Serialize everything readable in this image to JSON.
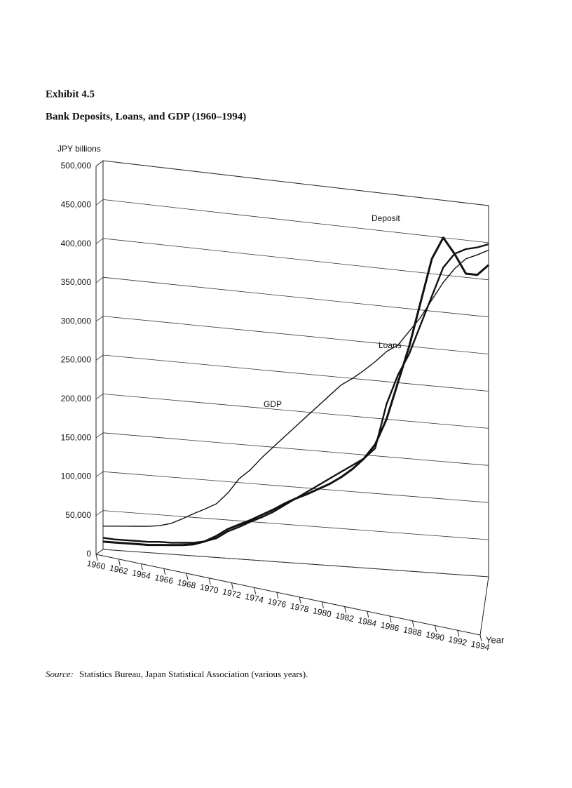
{
  "chart_data": {
    "type": "line",
    "title": "Exhibit 4.5",
    "subtitle": "Bank Deposits, Loans, and GDP (1960–1994)",
    "y_label": "JPY billions",
    "x_label": "Year",
    "source": {
      "prefix": "Source:",
      "text": "Statistics Bureau, Japan Statistical Association (various years)."
    },
    "x": [
      1960,
      1961,
      1962,
      1963,
      1964,
      1965,
      1966,
      1967,
      1968,
      1969,
      1970,
      1971,
      1972,
      1973,
      1974,
      1975,
      1976,
      1977,
      1978,
      1979,
      1980,
      1981,
      1982,
      1983,
      1984,
      1985,
      1986,
      1987,
      1988,
      1989,
      1990,
      1991,
      1992,
      1993,
      1994
    ],
    "xlim": [
      1960,
      1994
    ],
    "xticks": [
      1960,
      1962,
      1964,
      1966,
      1968,
      1970,
      1972,
      1974,
      1976,
      1978,
      1980,
      1982,
      1984,
      1986,
      1988,
      1990,
      1992,
      1994
    ],
    "ylim": [
      0,
      500000
    ],
    "yticks": [
      0,
      {
        "value": 50000,
        "label": "50,000"
      },
      {
        "value": 100000,
        "label": "100,000"
      },
      {
        "value": 150000,
        "label": "150,000"
      },
      {
        "value": 200000,
        "label": "200,000"
      },
      {
        "value": 250000,
        "label": "250,000"
      },
      {
        "value": 300000,
        "label": "300,000"
      },
      {
        "value": 350000,
        "label": "350,000"
      },
      {
        "value": 400000,
        "label": "400,000"
      },
      {
        "value": 450000,
        "label": "450,000"
      },
      {
        "value": 500000,
        "label": "500,000"
      }
    ],
    "grid": true,
    "series": [
      {
        "name": "Deposit",
        "color": "#111111",
        "values": [
          10000,
          10000,
          10000,
          10000,
          10000,
          11000,
          12000,
          13000,
          15000,
          20000,
          28000,
          38000,
          45000,
          52000,
          60000,
          68000,
          77000,
          85000,
          92000,
          100000,
          108000,
          118000,
          130000,
          145000,
          165000,
          200000,
          250000,
          300000,
          360000,
          420000,
          450000,
          430000,
          405000,
          405000,
          420000
        ]
      },
      {
        "name": "Loans",
        "color": "#111111",
        "values": [
          15000,
          14000,
          14000,
          14000,
          14000,
          15000,
          15000,
          16000,
          17000,
          20000,
          25000,
          35000,
          42000,
          50000,
          57000,
          65000,
          75000,
          85000,
          95000,
          105000,
          115000,
          125000,
          135000,
          145000,
          160000,
          220000,
          260000,
          290000,
          330000,
          370000,
          410000,
          430000,
          438000,
          442000,
          448000
        ]
      },
      {
        "name": "GDP",
        "color": "#111111",
        "values": [
          30000,
          31000,
          32000,
          33000,
          34000,
          36000,
          40000,
          47000,
          55000,
          62000,
          70000,
          85000,
          105000,
          118000,
          135000,
          150000,
          165000,
          180000,
          195000,
          210000,
          225000,
          240000,
          250000,
          262000,
          275000,
          290000,
          300000,
          320000,
          340000,
          365000,
          390000,
          410000,
          425000,
          432000,
          440000
        ]
      }
    ]
  }
}
